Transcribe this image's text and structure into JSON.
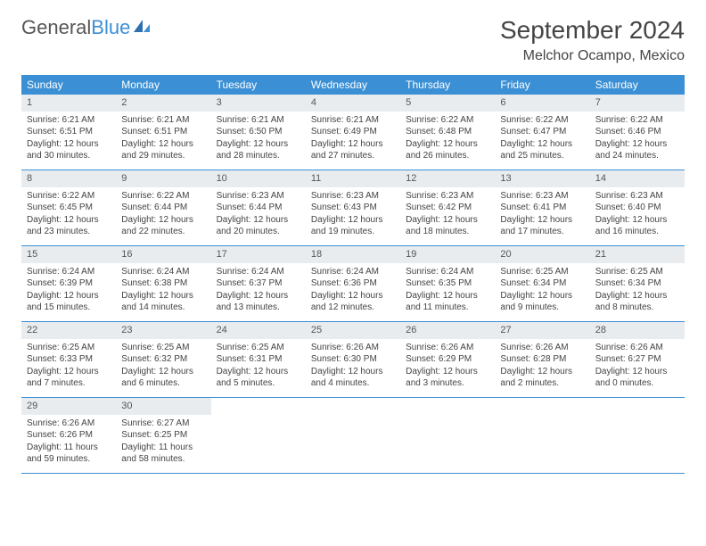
{
  "logo": {
    "text1": "General",
    "text2": "Blue"
  },
  "title": "September 2024",
  "location": "Melchor Ocampo, Mexico",
  "colors": {
    "header_bg": "#3b8fd4",
    "daynum_bg": "#e9ecef",
    "border": "#3b8fd4",
    "text": "#444444",
    "background": "#ffffff"
  },
  "layout": {
    "columns": 7,
    "rows": 5,
    "cell_font_size": 10,
    "header_font_size": 12,
    "title_font_size": 28
  },
  "dayNames": [
    "Sunday",
    "Monday",
    "Tuesday",
    "Wednesday",
    "Thursday",
    "Friday",
    "Saturday"
  ],
  "days": [
    {
      "n": "1",
      "sr": "Sunrise: 6:21 AM",
      "ss": "Sunset: 6:51 PM",
      "dl": "Daylight: 12 hours and 30 minutes."
    },
    {
      "n": "2",
      "sr": "Sunrise: 6:21 AM",
      "ss": "Sunset: 6:51 PM",
      "dl": "Daylight: 12 hours and 29 minutes."
    },
    {
      "n": "3",
      "sr": "Sunrise: 6:21 AM",
      "ss": "Sunset: 6:50 PM",
      "dl": "Daylight: 12 hours and 28 minutes."
    },
    {
      "n": "4",
      "sr": "Sunrise: 6:21 AM",
      "ss": "Sunset: 6:49 PM",
      "dl": "Daylight: 12 hours and 27 minutes."
    },
    {
      "n": "5",
      "sr": "Sunrise: 6:22 AM",
      "ss": "Sunset: 6:48 PM",
      "dl": "Daylight: 12 hours and 26 minutes."
    },
    {
      "n": "6",
      "sr": "Sunrise: 6:22 AM",
      "ss": "Sunset: 6:47 PM",
      "dl": "Daylight: 12 hours and 25 minutes."
    },
    {
      "n": "7",
      "sr": "Sunrise: 6:22 AM",
      "ss": "Sunset: 6:46 PM",
      "dl": "Daylight: 12 hours and 24 minutes."
    },
    {
      "n": "8",
      "sr": "Sunrise: 6:22 AM",
      "ss": "Sunset: 6:45 PM",
      "dl": "Daylight: 12 hours and 23 minutes."
    },
    {
      "n": "9",
      "sr": "Sunrise: 6:22 AM",
      "ss": "Sunset: 6:44 PM",
      "dl": "Daylight: 12 hours and 22 minutes."
    },
    {
      "n": "10",
      "sr": "Sunrise: 6:23 AM",
      "ss": "Sunset: 6:44 PM",
      "dl": "Daylight: 12 hours and 20 minutes."
    },
    {
      "n": "11",
      "sr": "Sunrise: 6:23 AM",
      "ss": "Sunset: 6:43 PM",
      "dl": "Daylight: 12 hours and 19 minutes."
    },
    {
      "n": "12",
      "sr": "Sunrise: 6:23 AM",
      "ss": "Sunset: 6:42 PM",
      "dl": "Daylight: 12 hours and 18 minutes."
    },
    {
      "n": "13",
      "sr": "Sunrise: 6:23 AM",
      "ss": "Sunset: 6:41 PM",
      "dl": "Daylight: 12 hours and 17 minutes."
    },
    {
      "n": "14",
      "sr": "Sunrise: 6:23 AM",
      "ss": "Sunset: 6:40 PM",
      "dl": "Daylight: 12 hours and 16 minutes."
    },
    {
      "n": "15",
      "sr": "Sunrise: 6:24 AM",
      "ss": "Sunset: 6:39 PM",
      "dl": "Daylight: 12 hours and 15 minutes."
    },
    {
      "n": "16",
      "sr": "Sunrise: 6:24 AM",
      "ss": "Sunset: 6:38 PM",
      "dl": "Daylight: 12 hours and 14 minutes."
    },
    {
      "n": "17",
      "sr": "Sunrise: 6:24 AM",
      "ss": "Sunset: 6:37 PM",
      "dl": "Daylight: 12 hours and 13 minutes."
    },
    {
      "n": "18",
      "sr": "Sunrise: 6:24 AM",
      "ss": "Sunset: 6:36 PM",
      "dl": "Daylight: 12 hours and 12 minutes."
    },
    {
      "n": "19",
      "sr": "Sunrise: 6:24 AM",
      "ss": "Sunset: 6:35 PM",
      "dl": "Daylight: 12 hours and 11 minutes."
    },
    {
      "n": "20",
      "sr": "Sunrise: 6:25 AM",
      "ss": "Sunset: 6:34 PM",
      "dl": "Daylight: 12 hours and 9 minutes."
    },
    {
      "n": "21",
      "sr": "Sunrise: 6:25 AM",
      "ss": "Sunset: 6:34 PM",
      "dl": "Daylight: 12 hours and 8 minutes."
    },
    {
      "n": "22",
      "sr": "Sunrise: 6:25 AM",
      "ss": "Sunset: 6:33 PM",
      "dl": "Daylight: 12 hours and 7 minutes."
    },
    {
      "n": "23",
      "sr": "Sunrise: 6:25 AM",
      "ss": "Sunset: 6:32 PM",
      "dl": "Daylight: 12 hours and 6 minutes."
    },
    {
      "n": "24",
      "sr": "Sunrise: 6:25 AM",
      "ss": "Sunset: 6:31 PM",
      "dl": "Daylight: 12 hours and 5 minutes."
    },
    {
      "n": "25",
      "sr": "Sunrise: 6:26 AM",
      "ss": "Sunset: 6:30 PM",
      "dl": "Daylight: 12 hours and 4 minutes."
    },
    {
      "n": "26",
      "sr": "Sunrise: 6:26 AM",
      "ss": "Sunset: 6:29 PM",
      "dl": "Daylight: 12 hours and 3 minutes."
    },
    {
      "n": "27",
      "sr": "Sunrise: 6:26 AM",
      "ss": "Sunset: 6:28 PM",
      "dl": "Daylight: 12 hours and 2 minutes."
    },
    {
      "n": "28",
      "sr": "Sunrise: 6:26 AM",
      "ss": "Sunset: 6:27 PM",
      "dl": "Daylight: 12 hours and 0 minutes."
    },
    {
      "n": "29",
      "sr": "Sunrise: 6:26 AM",
      "ss": "Sunset: 6:26 PM",
      "dl": "Daylight: 11 hours and 59 minutes."
    },
    {
      "n": "30",
      "sr": "Sunrise: 6:27 AM",
      "ss": "Sunset: 6:25 PM",
      "dl": "Daylight: 11 hours and 58 minutes."
    }
  ]
}
